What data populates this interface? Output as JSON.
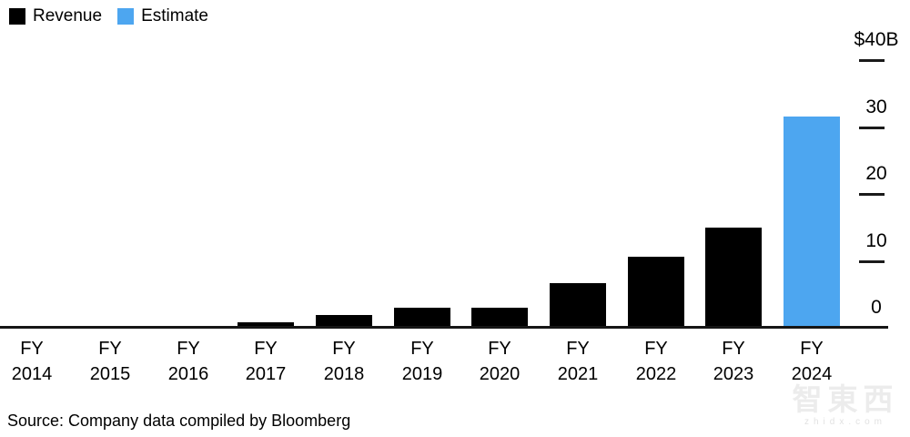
{
  "legend": {
    "items": [
      {
        "label": "Revenue",
        "color": "#000000"
      },
      {
        "label": "Estimate",
        "color": "#4DA6F0"
      }
    ]
  },
  "chart_data": {
    "type": "bar",
    "title": "",
    "unit": "billions USD",
    "categories": [
      "FY 2014",
      "FY 2015",
      "FY 2016",
      "FY 2017",
      "FY 2018",
      "FY 2019",
      "FY 2020",
      "FY 2021",
      "FY 2022",
      "FY 2023",
      "FY 2024"
    ],
    "series": [
      {
        "name": "Revenue",
        "color": "#000000",
        "values": [
          0.24,
          0.32,
          0.34,
          0.83,
          1.93,
          2.93,
          2.98,
          6.7,
          10.61,
          15.01,
          null
        ]
      },
      {
        "name": "Estimate",
        "color": "#4DA6F0",
        "values": [
          null,
          null,
          null,
          null,
          null,
          null,
          null,
          null,
          null,
          null,
          31.5
        ]
      }
    ],
    "ylim": [
      0,
      40
    ],
    "yticks": [
      {
        "value": 40,
        "label": "$40B"
      },
      {
        "value": 30,
        "label": "30"
      },
      {
        "value": 20,
        "label": "20"
      },
      {
        "value": 10,
        "label": "10"
      },
      {
        "value": 0,
        "label": "0"
      }
    ],
    "grid": false,
    "legend_position": "top-left",
    "yaxis_side": "right"
  },
  "source": {
    "text": "Source: Company data compiled by Bloomberg"
  },
  "watermark": {
    "text": "智東西",
    "subtext": "zhidx.com"
  }
}
